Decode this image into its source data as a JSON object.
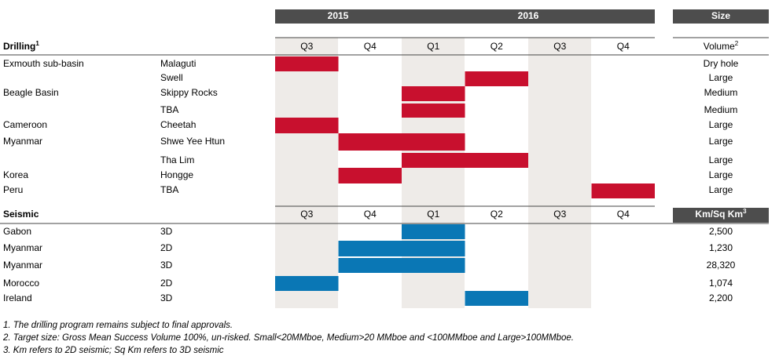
{
  "header": {
    "years": [
      "2015",
      "2016"
    ],
    "size": "Size"
  },
  "drilling": {
    "title": "Drilling",
    "note": "1",
    "quarters": [
      "Q3",
      "Q4",
      "Q1",
      "Q2",
      "Q3",
      "Q4"
    ],
    "size_header": "Volume",
    "size_note": "2",
    "rows": [
      {
        "region": "Exmouth sub-basin",
        "prospect": "Malaguti",
        "size": "Dry hole",
        "start": 0,
        "end": 0
      },
      {
        "region": null,
        "prospect": "Swell",
        "size": "Large",
        "start": 3,
        "end": 3
      },
      {
        "region": "Beagle Basin",
        "prospect": "Skippy Rocks",
        "size": "Medium",
        "start": 2,
        "end": 2
      },
      {
        "region": null,
        "prospect": "TBA",
        "size": "Medium",
        "start": 2,
        "end": 2
      },
      {
        "region": "Cameroon",
        "prospect": "Cheetah",
        "size": "Large",
        "start": 0,
        "end": 0
      },
      {
        "region": "Myanmar",
        "prospect": "Shwe Yee Htun",
        "size": "Large",
        "start": 1,
        "end": 2
      },
      {
        "region": null,
        "prospect": "Tha Lim",
        "size": "Large",
        "start": 2,
        "end": 3
      },
      {
        "region": "Korea",
        "prospect": "Hongge",
        "size": "Large",
        "start": 1,
        "end": 1
      },
      {
        "region": "Peru",
        "prospect": "TBA",
        "size": "Large",
        "start": 5,
        "end": 5
      }
    ]
  },
  "seismic": {
    "title": "Seismic",
    "quarters": [
      "Q3",
      "Q4",
      "Q1",
      "Q2",
      "Q3",
      "Q4"
    ],
    "size_header": "Km/Sq Km",
    "size_note": "3",
    "rows": [
      {
        "region": "Gabon",
        "prospect": "3D",
        "size": "2,500",
        "start": 2,
        "end": 2
      },
      {
        "region": "Myanmar",
        "prospect": "2D",
        "size": "1,230",
        "start": 1,
        "end": 2
      },
      {
        "region": "Myanmar",
        "prospect": "3D",
        "size": "28,320",
        "start": 1,
        "end": 2
      },
      {
        "region": "Morocco",
        "prospect": "2D",
        "size": "1,074",
        "start": 0,
        "end": 0
      },
      {
        "region": "Ireland",
        "prospect": "3D",
        "size": "2,200",
        "start": 3,
        "end": 3
      }
    ]
  },
  "footnotes": [
    "1. The drilling program remains subject to final approvals.",
    "2. Target size: Gross Mean Success Volume 100%, un-risked. Small<20MMboe, Medium>20 MMboe and <100MMboe and Large>100MMboe.",
    "3. Km refers to 2D seismic; Sq Km refers to 3D seismic"
  ]
}
